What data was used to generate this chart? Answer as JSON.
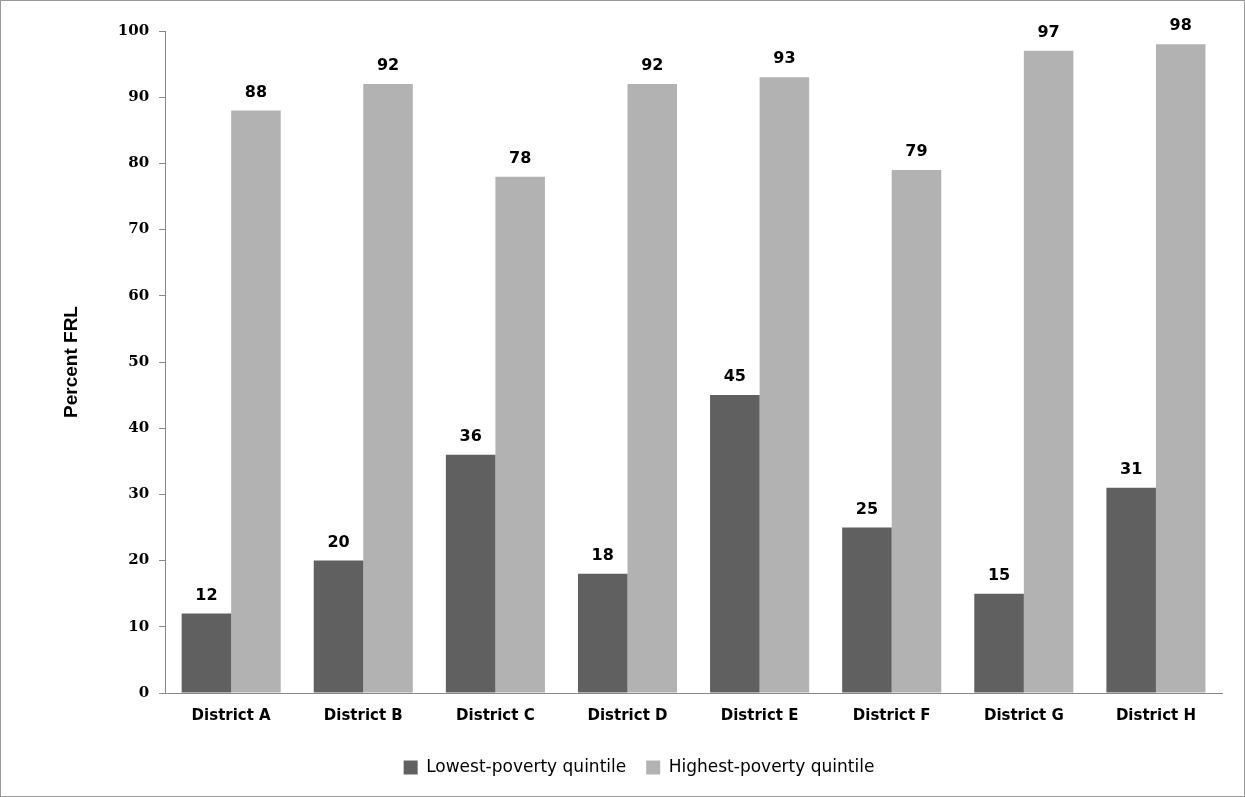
{
  "chart_data": {
    "type": "bar",
    "ylabel": "Percent FRL",
    "categories": [
      "District A",
      "District B",
      "District C",
      "District D",
      "District E",
      "District F",
      "District G",
      "District H"
    ],
    "series": [
      {
        "name": "Lowest-poverty quintile",
        "color": "#606060",
        "values": [
          12,
          20,
          36,
          18,
          45,
          25,
          15,
          31
        ]
      },
      {
        "name": "Highest-poverty quintile",
        "color": "#b2b2b2",
        "values": [
          88,
          92,
          78,
          92,
          93,
          79,
          97,
          98
        ]
      }
    ],
    "ylim": [
      0,
      100
    ],
    "yticks": [
      0,
      10,
      20,
      30,
      40,
      50,
      60,
      70,
      80,
      90,
      100
    ],
    "grid": false,
    "legend": "bottom",
    "data_labels": true
  }
}
